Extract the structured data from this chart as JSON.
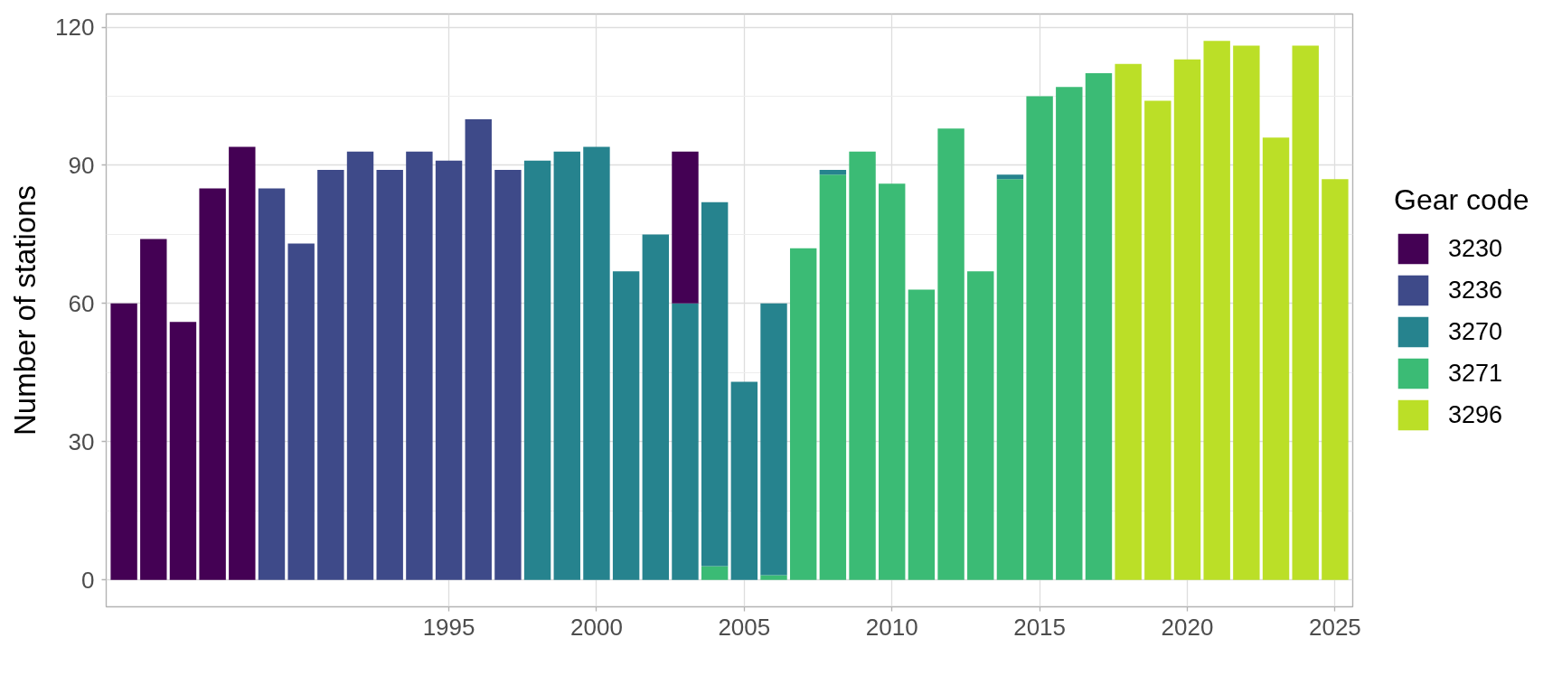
{
  "chart_data": {
    "type": "bar",
    "stacked": true,
    "ylabel": "Number of stations",
    "legend_title": "Gear code",
    "legend": "right",
    "grid": true,
    "x": [
      1984,
      1985,
      1986,
      1987,
      1988,
      1989,
      1990,
      1991,
      1992,
      1993,
      1994,
      1995,
      1996,
      1997,
      1998,
      1999,
      2000,
      2001,
      2002,
      2003,
      2004,
      2005,
      2006,
      2007,
      2008,
      2009,
      2010,
      2011,
      2012,
      2013,
      2014,
      2015,
      2016,
      2017,
      2018,
      2019,
      2020,
      2021,
      2022,
      2023,
      2024,
      2025
    ],
    "xlim": [
      1983.4,
      2025.6
    ],
    "xticks": [
      1995,
      2000,
      2005,
      2010,
      2015,
      2020,
      2025
    ],
    "ylim": [
      -5.85,
      122.85
    ],
    "yticks": [
      0,
      30,
      60,
      90,
      120
    ],
    "series": [
      {
        "name": "3296",
        "color": "#bbdf27",
        "values": [
          null,
          null,
          null,
          null,
          null,
          null,
          null,
          null,
          null,
          null,
          null,
          null,
          null,
          null,
          null,
          null,
          null,
          null,
          null,
          null,
          null,
          null,
          null,
          null,
          null,
          null,
          null,
          null,
          null,
          null,
          null,
          null,
          null,
          null,
          112,
          104,
          113,
          117,
          116,
          96,
          116,
          87
        ]
      },
      {
        "name": "3271",
        "color": "#3bbb75",
        "values": [
          null,
          null,
          null,
          null,
          null,
          null,
          null,
          null,
          null,
          null,
          null,
          null,
          null,
          null,
          null,
          null,
          null,
          null,
          null,
          null,
          3,
          null,
          1,
          72,
          88,
          93,
          86,
          63,
          98,
          67,
          87,
          105,
          107,
          110,
          null,
          null,
          null,
          null,
          null,
          null,
          null,
          null
        ]
      },
      {
        "name": "3270",
        "color": "#26838e",
        "values": [
          null,
          null,
          null,
          null,
          null,
          null,
          null,
          null,
          null,
          null,
          null,
          null,
          null,
          null,
          91,
          93,
          94,
          67,
          75,
          60,
          79,
          43,
          59,
          null,
          1,
          null,
          null,
          null,
          null,
          null,
          1,
          null,
          null,
          null,
          null,
          null,
          null,
          null,
          null,
          null,
          null,
          null
        ]
      },
      {
        "name": "3236",
        "color": "#3e4a89",
        "values": [
          null,
          null,
          null,
          null,
          null,
          85,
          73,
          89,
          93,
          89,
          93,
          91,
          100,
          89,
          null,
          null,
          null,
          null,
          null,
          null,
          null,
          null,
          null,
          null,
          null,
          null,
          null,
          null,
          null,
          null,
          null,
          null,
          null,
          null,
          null,
          null,
          null,
          null,
          null,
          null,
          null,
          null
        ]
      },
      {
        "name": "3230",
        "color": "#440154",
        "values": [
          60,
          74,
          56,
          85,
          94,
          null,
          null,
          null,
          null,
          null,
          null,
          null,
          null,
          null,
          null,
          null,
          null,
          null,
          null,
          33,
          null,
          null,
          null,
          null,
          null,
          null,
          null,
          null,
          null,
          null,
          null,
          null,
          null,
          null,
          null,
          null,
          null,
          null,
          null,
          null,
          null,
          null
        ]
      }
    ]
  }
}
